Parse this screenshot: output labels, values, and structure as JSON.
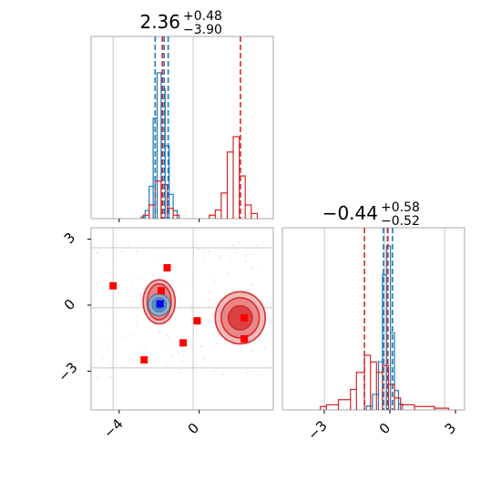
{
  "chart_data": {
    "type": "corner",
    "panels": [
      {
        "id": "x-marginal",
        "type": "histogram",
        "title": {
          "main": "2.36",
          "sup": "+0.48",
          "sub": "−3.90"
        },
        "xlim": [
          -5.1,
          4.0
        ],
        "series": [
          {
            "color": "#1f77b4",
            "bins": [
              [
                -2.6,
                -2.4,
                0.01
              ],
              [
                -2.4,
                -2.2,
                0.05
              ],
              [
                -2.2,
                -2.0,
                0.2
              ],
              [
                -2.0,
                -1.8,
                0.62
              ],
              [
                -1.8,
                -1.6,
                0.9
              ],
              [
                -1.6,
                -1.4,
                0.8
              ],
              [
                -1.4,
                -1.2,
                0.45
              ],
              [
                -1.2,
                -1.0,
                0.15
              ],
              [
                -1.0,
                -0.8,
                0.05
              ]
            ],
            "quantiles": [
              -1.9,
              -1.45,
              -1.25
            ]
          },
          {
            "color": "#d62728",
            "bins": [
              [
                -2.5,
                -2.2,
                0.02
              ],
              [
                -2.2,
                -1.9,
                0.08
              ],
              [
                -1.9,
                -1.6,
                0.22
              ],
              [
                -1.6,
                -1.3,
                0.2
              ],
              [
                -1.3,
                -1.0,
                0.06
              ],
              [
                -1.0,
                -0.7,
                0.02
              ],
              [
                0.8,
                1.1,
                0.02
              ],
              [
                1.1,
                1.4,
                0.05
              ],
              [
                1.4,
                1.7,
                0.15
              ],
              [
                1.7,
                2.0,
                0.39
              ],
              [
                2.0,
                2.3,
                0.48
              ],
              [
                2.3,
                2.6,
                0.25
              ],
              [
                2.6,
                2.9,
                0.08
              ],
              [
                2.9,
                3.2,
                0.03
              ]
            ],
            "quantiles": [
              -1.54,
              2.36
            ]
          }
        ]
      },
      {
        "id": "joint",
        "type": "scatter",
        "xlim": [
          -5.1,
          4.0
        ],
        "ylim": [
          -5.1,
          4.0
        ],
        "xticks": [
          "−4",
          "0"
        ],
        "yticks": [
          "3",
          "0",
          "−3"
        ],
        "blue_contours": {
          "color": "#1f77b4",
          "center": [
            -1.7,
            0.15
          ],
          "radii": [
            [
              0.55,
              0.55
            ],
            [
              0.35,
              0.35
            ],
            [
              0.18,
              0.2
            ]
          ]
        },
        "red_contours": {
          "color": "#d62728",
          "regions": [
            {
              "center": [
                2.35,
                -0.5
              ],
              "radii": [
                [
                  1.25,
                  1.3
                ],
                [
                  0.95,
                  1.0
                ],
                [
                  0.6,
                  0.6
                ]
              ]
            },
            {
              "center": [
                -1.7,
                0.3
              ],
              "radii": [
                [
                  0.8,
                  1.1
                ],
                [
                  0.6,
                  0.9
                ],
                [
                  0.35,
                  0.4
                ]
              ]
            }
          ]
        },
        "red_points": [
          [
            -4.0,
            1.1
          ],
          [
            -1.3,
            2.0
          ],
          [
            -1.6,
            0.85
          ],
          [
            0.2,
            -0.65
          ],
          [
            -0.5,
            -1.75
          ],
          [
            -2.45,
            -2.6
          ],
          [
            2.55,
            -0.5
          ],
          [
            2.55,
            -1.55
          ]
        ],
        "blue_points": [
          [
            -1.65,
            0.2
          ]
        ],
        "point_colors": {
          "red": "#ff0000",
          "blue": "#0000ff"
        }
      },
      {
        "id": "y-marginal",
        "type": "histogram",
        "title": {
          "main": "−0.44",
          "sup": "+0.58",
          "sub": "−0.52"
        },
        "xlim": [
          -5.1,
          4.0
        ],
        "xticks": [
          "−3",
          "0",
          "3"
        ],
        "series": [
          {
            "color": "#1f77b4",
            "bins": [
              [
                -0.9,
                -0.6,
                0.02
              ],
              [
                -0.6,
                -0.3,
                0.08
              ],
              [
                -0.3,
                -0.1,
                0.25
              ],
              [
                -0.1,
                0.1,
                0.7
              ],
              [
                0.1,
                0.3,
                0.85
              ],
              [
                0.3,
                0.5,
                0.4
              ],
              [
                0.5,
                0.7,
                0.1
              ],
              [
                0.7,
                0.9,
                0.03
              ]
            ],
            "quantiles": [
              -0.05,
              0.15,
              0.4
            ]
          },
          {
            "color": "#d62728",
            "bins": [
              [
                -3.2,
                -2.9,
                0.02
              ],
              [
                -2.9,
                -2.3,
                0.03
              ],
              [
                -2.3,
                -1.7,
                0.06
              ],
              [
                -1.7,
                -1.4,
                0.12
              ],
              [
                -1.4,
                -1.0,
                0.22
              ],
              [
                -1.0,
                -0.7,
                0.32
              ],
              [
                -0.7,
                -0.4,
                0.28
              ],
              [
                -0.4,
                -0.1,
                0.22
              ],
              [
                -0.1,
                0.2,
                0.26
              ],
              [
                0.2,
                0.5,
                0.15
              ],
              [
                0.5,
                0.8,
                0.07
              ],
              [
                0.8,
                1.5,
                0.03
              ],
              [
                1.5,
                2.5,
                0.02
              ],
              [
                2.5,
                3.2,
                0.01
              ]
            ],
            "quantiles": [
              -1.0,
              0.17
            ]
          }
        ]
      }
    ]
  }
}
